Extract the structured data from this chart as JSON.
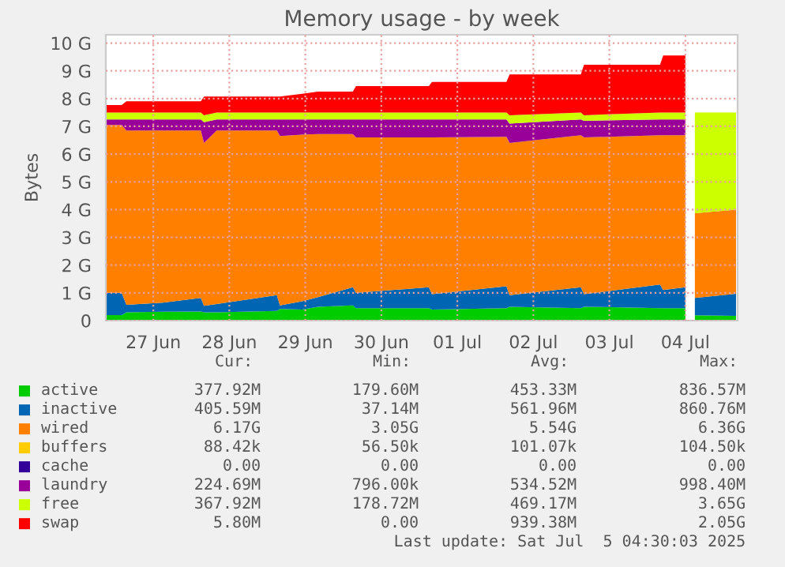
{
  "chart_data": {
    "type": "area",
    "stacked": true,
    "title": "Memory usage - by week",
    "ylabel": "Bytes",
    "x": [
      "2025-06-26T09:00",
      "2025-06-26T14:00",
      "2025-06-26T15:30",
      "2025-06-27T03:00",
      "2025-06-27T15:00",
      "2025-06-27T16:00",
      "2025-06-27T20:00",
      "2025-06-28T15:00",
      "2025-06-28T16:00",
      "2025-06-28T23:00",
      "2025-06-29T04:00",
      "2025-06-29T15:00",
      "2025-06-29T16:00",
      "2025-06-30T15:00",
      "2025-06-30T16:00",
      "2025-07-01T15:30",
      "2025-07-01T16:30",
      "2025-07-02T15:00",
      "2025-07-02T16:00",
      "2025-07-03T16:00",
      "2025-07-03T17:00",
      "2025-07-04T00:00",
      "2025-07-04T01:00",
      "2025-07-04T03:00",
      "2025-07-04T16:00"
    ],
    "series": [
      {
        "name": "active",
        "color": "#00cc00",
        "values": [
          0.2,
          0.2,
          0.3,
          0.32,
          0.33,
          0.3,
          0.3,
          0.35,
          0.42,
          0.4,
          0.5,
          0.55,
          0.45,
          0.45,
          0.4,
          0.45,
          0.5,
          0.45,
          0.5,
          0.45,
          0.45,
          0.45,
          null,
          0.19,
          0.17
        ]
      },
      {
        "name": "inactive",
        "color": "#0066b3",
        "values": [
          0.8,
          0.8,
          0.27,
          0.33,
          0.49,
          0.23,
          0.3,
          0.57,
          0.13,
          0.3,
          0.35,
          0.65,
          0.55,
          0.75,
          0.55,
          0.79,
          0.42,
          0.75,
          0.45,
          0.85,
          0.65,
          0.75,
          null,
          0.63,
          0.8
        ]
      },
      {
        "name": "wired",
        "color": "#ff8000",
        "values": [
          6.05,
          6.05,
          6.28,
          6.2,
          6.03,
          5.87,
          6.25,
          5.93,
          6.1,
          6.0,
          5.87,
          5.52,
          5.6,
          5.4,
          5.65,
          5.38,
          5.48,
          5.48,
          5.65,
          5.38,
          5.58,
          5.48,
          null,
          3.05,
          3.03
        ]
      },
      {
        "name": "buffers",
        "color": "#ffcc00",
        "values": [
          null,
          null,
          null,
          null,
          null,
          null,
          null,
          null,
          null,
          null,
          null,
          null,
          null,
          null,
          null,
          null,
          null,
          null,
          null,
          null,
          null,
          null,
          null,
          null,
          null
        ]
      },
      {
        "name": "cache",
        "color": "#330099",
        "values": [
          null,
          null,
          null,
          null,
          null,
          null,
          null,
          null,
          null,
          null,
          null,
          null,
          null,
          null,
          null,
          null,
          null,
          null,
          null,
          null,
          null,
          null,
          null,
          null,
          null
        ]
      },
      {
        "name": "laundry",
        "color": "#990099",
        "values": [
          0.2,
          0.2,
          0.4,
          0.4,
          0.4,
          0.75,
          0.4,
          0.4,
          0.6,
          0.55,
          0.53,
          0.53,
          0.65,
          0.65,
          0.65,
          0.63,
          0.7,
          0.57,
          0.6,
          0.57,
          0.57,
          0.57,
          null,
          null,
          null
        ]
      },
      {
        "name": "free",
        "color": "#ccff00",
        "values": [
          0.25,
          0.25,
          0.25,
          0.25,
          0.25,
          0.25,
          0.25,
          0.25,
          0.25,
          0.25,
          0.25,
          0.25,
          0.25,
          0.25,
          0.25,
          0.25,
          0.3,
          0.25,
          0.2,
          0.25,
          0.25,
          0.25,
          null,
          3.63,
          3.5
        ]
      },
      {
        "name": "swap",
        "color": "#ff0000",
        "values": [
          0.27,
          0.27,
          0.4,
          0.4,
          0.4,
          0.67,
          0.57,
          0.57,
          0.57,
          0.67,
          0.75,
          0.75,
          0.95,
          0.95,
          1.1,
          1.1,
          1.47,
          1.37,
          1.82,
          1.72,
          2.05,
          2.05,
          null,
          null,
          null
        ]
      }
    ],
    "xlim": [
      "2025-06-26T09:00",
      "2025-07-04T16:30"
    ],
    "xticks": [
      {
        "value": "2025-06-27",
        "label": "27 Jun"
      },
      {
        "value": "2025-06-28",
        "label": "28 Jun"
      },
      {
        "value": "2025-06-29",
        "label": "29 Jun"
      },
      {
        "value": "2025-06-30",
        "label": "30 Jun"
      },
      {
        "value": "2025-07-01",
        "label": "01 Jul"
      },
      {
        "value": "2025-07-02",
        "label": "02 Jul"
      },
      {
        "value": "2025-07-03",
        "label": "03 Jul"
      },
      {
        "value": "2025-07-04",
        "label": "04 Jul"
      }
    ],
    "ylim": [
      0,
      10.3
    ],
    "yticks": [
      0,
      {
        "value": 1,
        "label": "1 G"
      },
      {
        "value": 2,
        "label": "2 G"
      },
      {
        "value": 3,
        "label": "3 G"
      },
      {
        "value": 4,
        "label": "4 G"
      },
      {
        "value": 5,
        "label": "5 G"
      },
      {
        "value": 6,
        "label": "6 G"
      },
      {
        "value": 7,
        "label": "7 G"
      },
      {
        "value": 8,
        "label": "8 G"
      },
      {
        "value": 9,
        "label": "9 G"
      },
      {
        "value": 10,
        "label": "10 G"
      }
    ],
    "grid": true,
    "legend": "bottom",
    "annotations": [
      "Cur:",
      "Min:",
      "Avg:",
      "Max:",
      "377.92M",
      "179.60M",
      "453.33M",
      "836.57M",
      "405.59M",
      "37.14M",
      "561.96M",
      "860.76M",
      "6.17G",
      "3.05G",
      "5.54G",
      "6.36G",
      "88.42k",
      "56.50k",
      "101.07k",
      "104.50k",
      "0.00",
      "0.00",
      "0.00",
      "0.00",
      "224.69M",
      "796.00k",
      "534.52M",
      "998.40M",
      "367.92M",
      "178.72M",
      "469.17M",
      "3.65G",
      "5.80M",
      "0.00",
      "939.38M",
      "2.05G",
      "Last update: Sat Jul  5 04:30:03 2025"
    ]
  }
}
